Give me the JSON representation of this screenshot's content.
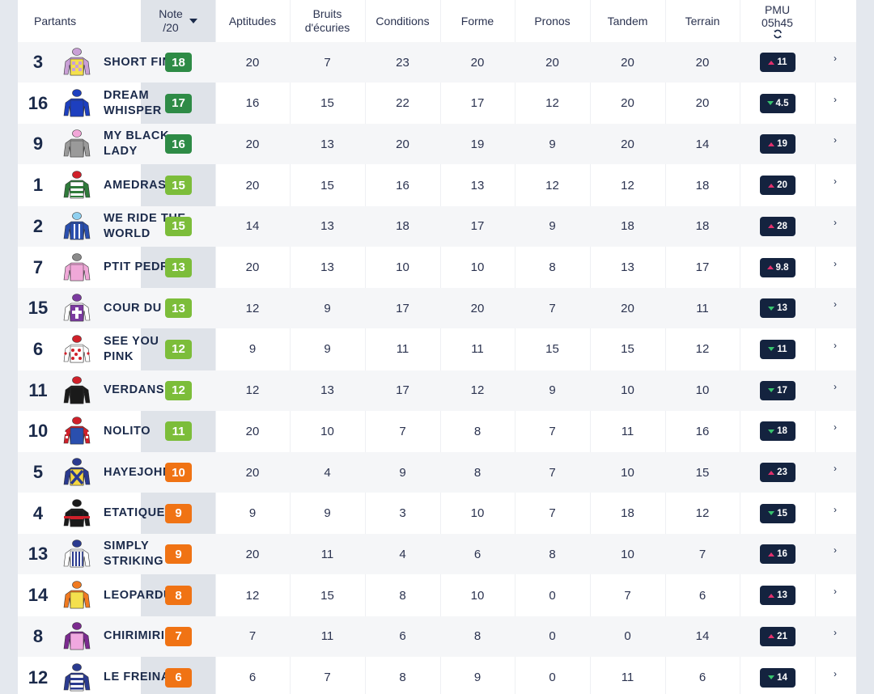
{
  "header": {
    "partants": "Partants",
    "note_line1": "Note",
    "note_line2": "/20",
    "aptitudes": "Aptitudes",
    "bruits_line1": "Bruits",
    "bruits_line2": "d'écuries",
    "conditions": "Conditions",
    "forme": "Forme",
    "pronos": "Pronos",
    "tandem": "Tandem",
    "terrain": "Terrain",
    "pmu_line1": "PMU",
    "pmu_line2": "05h45"
  },
  "colors": {
    "note_dark_green": "#2e8b46",
    "note_green": "#7cbd3a",
    "note_orange": "#f07314",
    "odds_bg": "#14233f",
    "odds_up": "#e1306c",
    "odds_down": "#37c26d"
  },
  "rows": [
    {
      "rank": "3",
      "name": "SHORT FINAL",
      "note": "18",
      "level": "dark",
      "aptitudes": "20",
      "bruits": "7",
      "conditions": "23",
      "forme": "20",
      "pronos": "20",
      "tandem": "20",
      "terrain": "20",
      "odds": "11",
      "trend": "up",
      "silk": "yellow-check"
    },
    {
      "rank": "16",
      "name": "DREAM WHISPER",
      "note": "17",
      "level": "dark",
      "aptitudes": "16",
      "bruits": "15",
      "conditions": "22",
      "forme": "17",
      "pronos": "12",
      "tandem": "20",
      "terrain": "20",
      "odds": "4.5",
      "trend": "down",
      "silk": "blue"
    },
    {
      "rank": "9",
      "name": "MY BLACK LADY",
      "note": "16",
      "level": "dark",
      "aptitudes": "20",
      "bruits": "13",
      "conditions": "20",
      "forme": "19",
      "pronos": "9",
      "tandem": "20",
      "terrain": "14",
      "odds": "19",
      "trend": "up",
      "silk": "grey-pink"
    },
    {
      "rank": "1",
      "name": "AMEDRAS",
      "note": "15",
      "level": "green",
      "aptitudes": "20",
      "bruits": "15",
      "conditions": "16",
      "forme": "13",
      "pronos": "12",
      "tandem": "12",
      "terrain": "18",
      "odds": "20",
      "trend": "up",
      "silk": "green-stripe"
    },
    {
      "rank": "2",
      "name": "WE RIDE THE WORLD",
      "note": "15",
      "level": "green",
      "aptitudes": "14",
      "bruits": "13",
      "conditions": "18",
      "forme": "17",
      "pronos": "9",
      "tandem": "18",
      "terrain": "18",
      "odds": "28",
      "trend": "up",
      "silk": "blue-stripe"
    },
    {
      "rank": "7",
      "name": "PTIT PEDRO",
      "note": "13",
      "level": "green",
      "aptitudes": "20",
      "bruits": "13",
      "conditions": "10",
      "forme": "10",
      "pronos": "8",
      "tandem": "13",
      "terrain": "17",
      "odds": "9.8",
      "trend": "up",
      "silk": "pink-grey"
    },
    {
      "rank": "15",
      "name": "COUR DU ROI",
      "note": "13",
      "level": "green",
      "aptitudes": "12",
      "bruits": "9",
      "conditions": "17",
      "forme": "20",
      "pronos": "7",
      "tandem": "20",
      "terrain": "11",
      "odds": "13",
      "trend": "down",
      "silk": "purple-cross"
    },
    {
      "rank": "6",
      "name": "SEE YOU PINK",
      "note": "12",
      "level": "green",
      "aptitudes": "9",
      "bruits": "9",
      "conditions": "11",
      "forme": "11",
      "pronos": "15",
      "tandem": "15",
      "terrain": "12",
      "odds": "11",
      "trend": "down",
      "silk": "red-dots"
    },
    {
      "rank": "11",
      "name": "VERDANSK",
      "note": "12",
      "level": "green",
      "aptitudes": "12",
      "bruits": "13",
      "conditions": "17",
      "forme": "12",
      "pronos": "9",
      "tandem": "10",
      "terrain": "10",
      "odds": "17",
      "trend": "down",
      "silk": "black-red"
    },
    {
      "rank": "10",
      "name": "NOLITO",
      "note": "11",
      "level": "green",
      "aptitudes": "20",
      "bruits": "10",
      "conditions": "7",
      "forme": "8",
      "pronos": "7",
      "tandem": "11",
      "terrain": "16",
      "odds": "18",
      "trend": "down",
      "silk": "blue-red"
    },
    {
      "rank": "5",
      "name": "HAYEJOHN",
      "note": "10",
      "level": "orange",
      "aptitudes": "20",
      "bruits": "4",
      "conditions": "9",
      "forme": "8",
      "pronos": "7",
      "tandem": "10",
      "terrain": "15",
      "odds": "23",
      "trend": "up",
      "silk": "yellow-cross"
    },
    {
      "rank": "4",
      "name": "ETATIQUE",
      "note": "9",
      "level": "orange",
      "aptitudes": "9",
      "bruits": "9",
      "conditions": "3",
      "forme": "10",
      "pronos": "7",
      "tandem": "18",
      "terrain": "12",
      "odds": "15",
      "trend": "down",
      "silk": "black-redband"
    },
    {
      "rank": "13",
      "name": "SIMPLY STRIKING",
      "note": "9",
      "level": "orange",
      "aptitudes": "20",
      "bruits": "11",
      "conditions": "4",
      "forme": "6",
      "pronos": "8",
      "tandem": "10",
      "terrain": "7",
      "odds": "16",
      "trend": "up",
      "silk": "navy-stripe"
    },
    {
      "rank": "14",
      "name": "LEOPARDUD",
      "note": "8",
      "level": "orange",
      "aptitudes": "12",
      "bruits": "15",
      "conditions": "8",
      "forme": "10",
      "pronos": "0",
      "tandem": "7",
      "terrain": "6",
      "odds": "13",
      "trend": "up",
      "silk": "yellow-orange"
    },
    {
      "rank": "8",
      "name": "CHIRIMIRI",
      "note": "7",
      "level": "orange",
      "aptitudes": "7",
      "bruits": "11",
      "conditions": "6",
      "forme": "8",
      "pronos": "0",
      "tandem": "0",
      "terrain": "14",
      "odds": "21",
      "trend": "up",
      "silk": "pink-purple"
    },
    {
      "rank": "12",
      "name": "LE FREINAY",
      "note": "6",
      "level": "orange",
      "aptitudes": "6",
      "bruits": "7",
      "conditions": "8",
      "forme": "9",
      "pronos": "0",
      "tandem": "11",
      "terrain": "6",
      "odds": "14",
      "trend": "down",
      "silk": "navy-hoops"
    }
  ]
}
